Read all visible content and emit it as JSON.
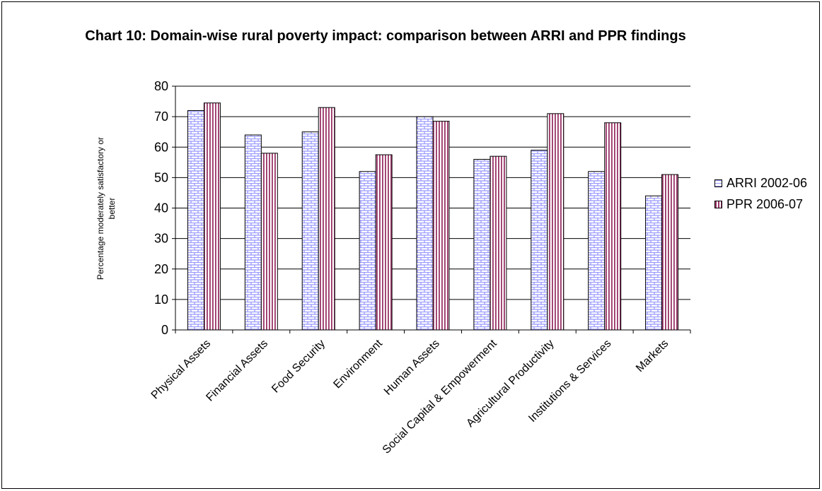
{
  "chart_data": {
    "type": "bar",
    "title": "Chart 10: Domain-wise rural poverty impact: comparison between ARRI and PPR findings",
    "xlabel": "",
    "ylabel": "Percentage moderately satisfactory or better",
    "ylim": [
      0,
      80
    ],
    "yticks": [
      "0",
      "10",
      "20",
      "30",
      "40",
      "50",
      "60",
      "70",
      "80"
    ],
    "grid": true,
    "legend_position": "right",
    "categories": [
      "Physical Assets",
      "Financial Assets",
      "Food Security",
      "Environment",
      "Human Assets",
      "Social Capital & Empowerment",
      "Agricultural Productivity",
      "Institutions & Services",
      "Markets"
    ],
    "series": [
      {
        "name": "ARRI 2002-06",
        "values": [
          72,
          64,
          65,
          52,
          70,
          56,
          59,
          52,
          44
        ],
        "color": "#9999ff",
        "pattern": "brick"
      },
      {
        "name": "PPR 2006-07",
        "values": [
          74.5,
          58,
          73,
          57.5,
          68.5,
          57,
          71,
          68,
          51
        ],
        "color": "#993366",
        "pattern": "vertical-stripes"
      }
    ]
  }
}
